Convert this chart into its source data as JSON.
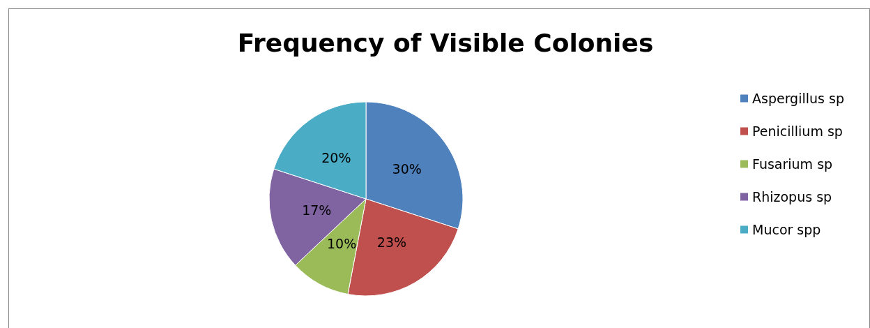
{
  "chart_data": {
    "type": "pie",
    "title": "Frequency of Visible Colonies",
    "categories": [
      "Aspergillus sp",
      "Penicillium sp",
      "Fusarium sp",
      "Rhizopus sp",
      "Mucor spp"
    ],
    "values": [
      30,
      23,
      10,
      17,
      20
    ],
    "colors": [
      "#4f81bd",
      "#c0504d",
      "#9bbb59",
      "#8064a2",
      "#4bacc6"
    ],
    "value_labels": [
      "30%",
      "23%",
      "10%",
      "17%",
      "20%"
    ],
    "legend": "right"
  }
}
